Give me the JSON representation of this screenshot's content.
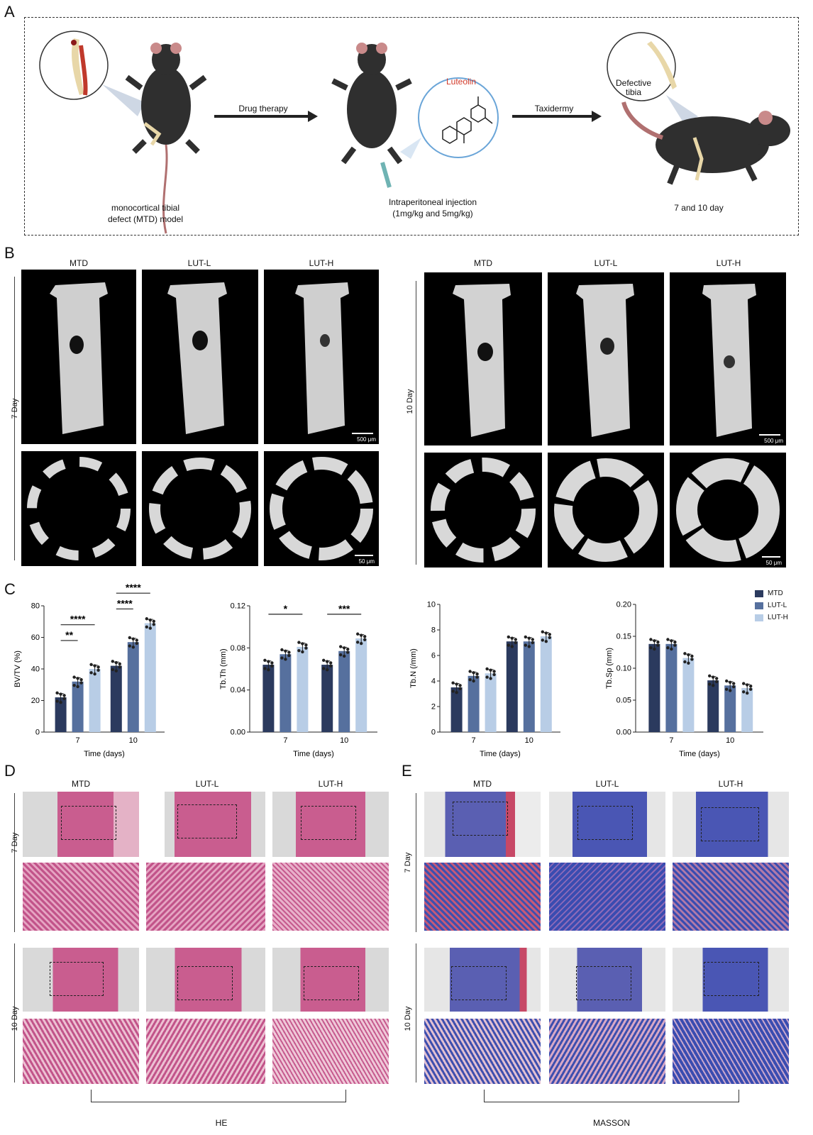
{
  "panels": {
    "A": "A",
    "B": "B",
    "C": "C",
    "D": "D",
    "E": "E"
  },
  "panelA": {
    "model_label_1": "monocortical tibial",
    "model_label_2": "defect (MTD) model",
    "arrow1": "Drug therapy",
    "luteolin": "Luteolin",
    "injection_1": "Intraperitoneal injection",
    "injection_2": "(1mg/kg and 5mg/kg)",
    "arrow2": "Taxidermy",
    "defective_1": "Defective",
    "defective_2": "tibia",
    "days": "7 and 10 day"
  },
  "panelB": {
    "groups": [
      "MTD",
      "LUT-L",
      "LUT-H"
    ],
    "day7": "7 Day",
    "day10": "10 Day",
    "scale_top": "500 μm",
    "scale_bottom": "50 μm"
  },
  "legend": [
    "MTD",
    "LUT-L",
    "LUT-H"
  ],
  "colors": {
    "MTD": "#2b3a5e",
    "LUT-L": "#56709e",
    "LUT-H": "#b8cde6",
    "luteolin": "#d23a2a"
  },
  "chart_data": [
    {
      "type": "bar",
      "ylabel": "BV/TV (%)",
      "xlabel": "Time (days)",
      "categories": [
        "7",
        "10"
      ],
      "ylim": [
        0,
        80
      ],
      "yticks": [
        "0",
        "20",
        "40",
        "60",
        "80"
      ],
      "series": [
        {
          "name": "MTD",
          "values": [
            22,
            42
          ]
        },
        {
          "name": "LUT-L",
          "values": [
            32,
            57
          ]
        },
        {
          "name": "LUT-H",
          "values": [
            40,
            69
          ]
        }
      ],
      "significance": [
        {
          "label": "**",
          "cat": 0,
          "from": 0,
          "to": 1,
          "y": 58
        },
        {
          "label": "****",
          "cat": 0,
          "from": 0,
          "to": 2,
          "y": 68
        },
        {
          "label": "****",
          "cat": 1,
          "from": 0,
          "to": 1,
          "y": 78
        },
        {
          "label": "****",
          "cat": 1,
          "from": 0,
          "to": 2,
          "y": 88
        }
      ]
    },
    {
      "type": "bar",
      "ylabel": "Tb.Th (mm)",
      "xlabel": "Time (days)",
      "categories": [
        "7",
        "10"
      ],
      "ylim": [
        0,
        0.12
      ],
      "yticks": [
        "0.00",
        "0.04",
        "0.08",
        "0.12"
      ],
      "series": [
        {
          "name": "MTD",
          "values": [
            0.064,
            0.064
          ]
        },
        {
          "name": "LUT-L",
          "values": [
            0.074,
            0.077
          ]
        },
        {
          "name": "LUT-H",
          "values": [
            0.081,
            0.089
          ]
        }
      ],
      "significance": [
        {
          "label": "*",
          "cat": 0,
          "from": 0,
          "to": 2,
          "y": 0.112
        },
        {
          "label": "***",
          "cat": 1,
          "from": 0,
          "to": 2,
          "y": 0.112
        }
      ]
    },
    {
      "type": "bar",
      "ylabel": "Tb.N (/mm)",
      "xlabel": "Time (days)",
      "categories": [
        "7",
        "10"
      ],
      "ylim": [
        0,
        10
      ],
      "yticks": [
        "0",
        "2",
        "4",
        "6",
        "8",
        "10"
      ],
      "series": [
        {
          "name": "MTD",
          "values": [
            3.5,
            7.1
          ]
        },
        {
          "name": "LUT-L",
          "values": [
            4.4,
            7.1
          ]
        },
        {
          "name": "LUT-H",
          "values": [
            4.6,
            7.5
          ]
        }
      ],
      "significance": []
    },
    {
      "type": "bar",
      "ylabel": "Tb.Sp (mm)",
      "xlabel": "Time (days)",
      "categories": [
        "7",
        "10"
      ],
      "ylim": [
        0,
        0.2
      ],
      "yticks": [
        "0.00",
        "0.05",
        "0.10",
        "0.15",
        "0.20"
      ],
      "series": [
        {
          "name": "MTD",
          "values": [
            0.138,
            0.081
          ]
        },
        {
          "name": "LUT-L",
          "values": [
            0.138,
            0.073
          ]
        },
        {
          "name": "LUT-H",
          "values": [
            0.116,
            0.069
          ]
        }
      ],
      "significance": []
    }
  ],
  "panelD": {
    "groups": [
      "MTD",
      "LUT-L",
      "LUT-H"
    ],
    "day7": "7 Day",
    "day10": "10 Day",
    "stain": "HE"
  },
  "panelE": {
    "groups": [
      "MTD",
      "LUT-L",
      "LUT-H"
    ],
    "day7": "7 Day",
    "day10": "10 Day",
    "stain": "MASSON"
  }
}
